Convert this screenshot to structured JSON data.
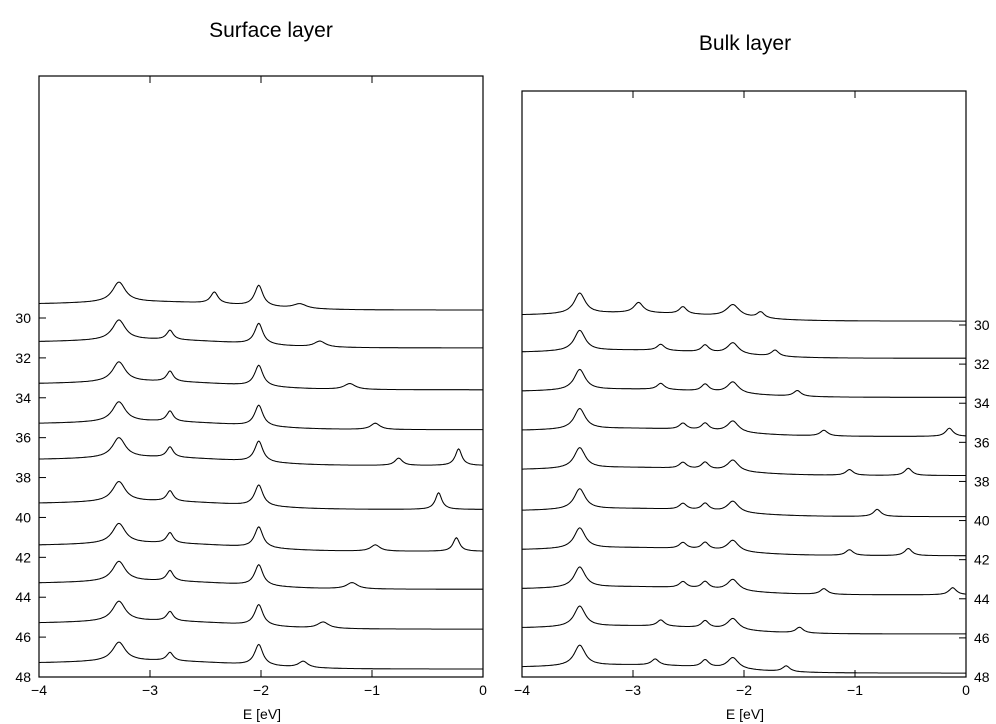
{
  "chart_data": [
    {
      "type": "line",
      "title": "Surface layer",
      "xlabel": "E [eV]",
      "ylabel": "",
      "xlim": [
        -4,
        0
      ],
      "xticks": [
        -4,
        -3,
        -2,
        -1,
        0
      ],
      "xtick_labels": [
        "−4",
        "−3",
        "−2",
        "−1",
        "0"
      ],
      "ylim": [
        48,
        29
      ],
      "yticks": [
        30,
        32,
        34,
        36,
        38,
        40,
        42,
        44,
        46,
        48
      ],
      "ytick_labels": [
        "30",
        "32",
        "34",
        "36",
        "38",
        "40",
        "42",
        "44",
        "46",
        "48"
      ],
      "yaxis_side": "left",
      "yaxis_inverted": true,
      "grid": false,
      "legend": "none",
      "curve_peak_amplitude": 10.5,
      "series": [
        {
          "baseline": 29.6,
          "peaks": [
            [
              -3.28,
              0.95,
              0.07
            ],
            [
              -2.42,
              0.55,
              0.04
            ],
            [
              -2.02,
              1.0,
              0.045
            ],
            [
              -1.65,
              0.22,
              0.07
            ]
          ]
        },
        {
          "baseline": 31.5,
          "peaks": [
            [
              -3.28,
              0.95,
              0.07
            ],
            [
              -2.82,
              0.45,
              0.035
            ],
            [
              -2.02,
              1.0,
              0.045
            ],
            [
              -1.47,
              0.28,
              0.06
            ]
          ]
        },
        {
          "baseline": 33.6,
          "peaks": [
            [
              -3.28,
              0.95,
              0.07
            ],
            [
              -2.82,
              0.5,
              0.035
            ],
            [
              -2.02,
              1.0,
              0.045
            ],
            [
              -1.2,
              0.28,
              0.06
            ]
          ]
        },
        {
          "baseline": 35.6,
          "peaks": [
            [
              -3.28,
              0.95,
              0.07
            ],
            [
              -2.82,
              0.5,
              0.035
            ],
            [
              -2.02,
              1.0,
              0.045
            ],
            [
              -0.97,
              0.3,
              0.05
            ]
          ]
        },
        {
          "baseline": 37.4,
          "peaks": [
            [
              -3.28,
              0.95,
              0.07
            ],
            [
              -2.82,
              0.5,
              0.035
            ],
            [
              -2.02,
              1.0,
              0.045
            ],
            [
              -0.76,
              0.35,
              0.04
            ],
            [
              -0.22,
              0.8,
              0.035
            ]
          ]
        },
        {
          "baseline": 39.6,
          "peaks": [
            [
              -3.28,
              0.95,
              0.07
            ],
            [
              -2.82,
              0.5,
              0.035
            ],
            [
              -2.02,
              1.0,
              0.045
            ],
            [
              -0.4,
              0.8,
              0.035
            ]
          ]
        },
        {
          "baseline": 41.7,
          "peaks": [
            [
              -3.28,
              0.95,
              0.07
            ],
            [
              -2.82,
              0.5,
              0.035
            ],
            [
              -2.02,
              1.0,
              0.045
            ],
            [
              -0.97,
              0.3,
              0.05
            ],
            [
              -0.24,
              0.65,
              0.035
            ]
          ]
        },
        {
          "baseline": 43.6,
          "peaks": [
            [
              -3.28,
              0.95,
              0.07
            ],
            [
              -2.82,
              0.5,
              0.035
            ],
            [
              -2.02,
              1.0,
              0.045
            ],
            [
              -1.18,
              0.3,
              0.06
            ]
          ]
        },
        {
          "baseline": 45.6,
          "peaks": [
            [
              -3.28,
              0.95,
              0.07
            ],
            [
              -2.82,
              0.45,
              0.035
            ],
            [
              -2.02,
              1.0,
              0.045
            ],
            [
              -1.44,
              0.3,
              0.06
            ]
          ]
        },
        {
          "baseline": 47.6,
          "peaks": [
            [
              -3.28,
              0.9,
              0.07
            ],
            [
              -2.82,
              0.4,
              0.035
            ],
            [
              -2.02,
              1.0,
              0.045
            ],
            [
              -1.62,
              0.3,
              0.05
            ]
          ]
        }
      ]
    },
    {
      "type": "line",
      "title": "Bulk layer",
      "xlabel": "E [eV]",
      "ylabel": "",
      "xlim": [
        -4,
        0
      ],
      "xticks": [
        -4,
        -3,
        -2,
        -1,
        0
      ],
      "xtick_labels": [
        "−4",
        "−3",
        "−2",
        "−1",
        "0"
      ],
      "ylim": [
        48,
        29
      ],
      "yticks": [
        30,
        32,
        34,
        36,
        38,
        40,
        42,
        44,
        46,
        48
      ],
      "ytick_labels": [
        "30",
        "32",
        "34",
        "36",
        "38",
        "40",
        "42",
        "44",
        "46",
        "48"
      ],
      "yaxis_side": "right",
      "yaxis_inverted": true,
      "grid": false,
      "legend": "none",
      "curve_peak_amplitude": 10.5,
      "series": [
        {
          "baseline": 29.8,
          "peaks": [
            [
              -3.48,
              1.0,
              0.06
            ],
            [
              -2.95,
              0.5,
              0.05
            ],
            [
              -2.55,
              0.35,
              0.04
            ],
            [
              -2.1,
              0.6,
              0.07
            ],
            [
              -1.85,
              0.3,
              0.04
            ]
          ]
        },
        {
          "baseline": 31.7,
          "peaks": [
            [
              -3.48,
              1.0,
              0.06
            ],
            [
              -2.75,
              0.3,
              0.04
            ],
            [
              -2.35,
              0.35,
              0.04
            ],
            [
              -2.1,
              0.55,
              0.06
            ],
            [
              -1.72,
              0.3,
              0.04
            ]
          ]
        },
        {
          "baseline": 33.7,
          "peaks": [
            [
              -3.48,
              1.0,
              0.06
            ],
            [
              -2.75,
              0.3,
              0.04
            ],
            [
              -2.35,
              0.35,
              0.04
            ],
            [
              -2.1,
              0.55,
              0.06
            ],
            [
              -1.52,
              0.28,
              0.04
            ]
          ]
        },
        {
          "baseline": 35.7,
          "peaks": [
            [
              -3.48,
              1.0,
              0.06
            ],
            [
              -2.55,
              0.3,
              0.04
            ],
            [
              -2.35,
              0.35,
              0.04
            ],
            [
              -2.1,
              0.55,
              0.06
            ],
            [
              -1.28,
              0.28,
              0.04
            ],
            [
              -0.15,
              0.4,
              0.04
            ]
          ]
        },
        {
          "baseline": 37.7,
          "peaks": [
            [
              -3.48,
              1.0,
              0.06
            ],
            [
              -2.55,
              0.3,
              0.04
            ],
            [
              -2.35,
              0.35,
              0.04
            ],
            [
              -2.1,
              0.55,
              0.06
            ],
            [
              -1.05,
              0.28,
              0.04
            ],
            [
              -0.52,
              0.35,
              0.04
            ]
          ]
        },
        {
          "baseline": 39.8,
          "peaks": [
            [
              -3.48,
              1.0,
              0.06
            ],
            [
              -2.55,
              0.3,
              0.04
            ],
            [
              -2.35,
              0.35,
              0.04
            ],
            [
              -2.1,
              0.55,
              0.06
            ],
            [
              -0.8,
              0.35,
              0.04
            ]
          ]
        },
        {
          "baseline": 41.8,
          "peaks": [
            [
              -3.48,
              1.0,
              0.06
            ],
            [
              -2.55,
              0.3,
              0.04
            ],
            [
              -2.35,
              0.35,
              0.04
            ],
            [
              -2.1,
              0.55,
              0.06
            ],
            [
              -1.05,
              0.28,
              0.04
            ],
            [
              -0.52,
              0.35,
              0.04
            ]
          ]
        },
        {
          "baseline": 43.8,
          "peaks": [
            [
              -3.48,
              1.0,
              0.06
            ],
            [
              -2.55,
              0.3,
              0.04
            ],
            [
              -2.35,
              0.35,
              0.04
            ],
            [
              -2.1,
              0.55,
              0.06
            ],
            [
              -1.28,
              0.28,
              0.04
            ],
            [
              -0.12,
              0.35,
              0.04
            ]
          ]
        },
        {
          "baseline": 45.8,
          "peaks": [
            [
              -3.48,
              1.0,
              0.06
            ],
            [
              -2.75,
              0.3,
              0.04
            ],
            [
              -2.35,
              0.35,
              0.04
            ],
            [
              -2.1,
              0.55,
              0.06
            ],
            [
              -1.5,
              0.28,
              0.04
            ]
          ]
        },
        {
          "baseline": 47.8,
          "peaks": [
            [
              -3.48,
              1.0,
              0.06
            ],
            [
              -2.8,
              0.3,
              0.04
            ],
            [
              -2.35,
              0.35,
              0.04
            ],
            [
              -2.1,
              0.55,
              0.06
            ],
            [
              -1.62,
              0.28,
              0.04
            ]
          ]
        }
      ]
    }
  ]
}
